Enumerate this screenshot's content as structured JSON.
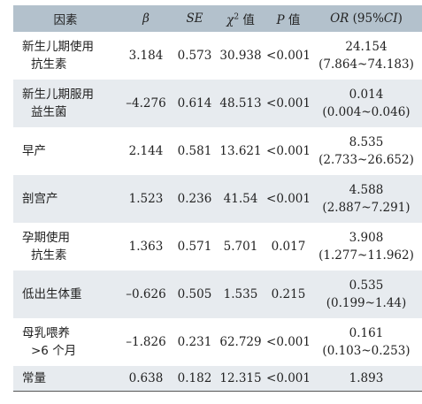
{
  "headers": {
    "factor": "因素",
    "beta": "β",
    "se": "SE",
    "chi": "χ",
    "chi_sup": "2",
    "chi_suffix": " 值",
    "p": "P",
    "p_suffix": " 值",
    "or": "OR",
    "or_suffix": " (95%",
    "ci": "CI",
    "ci_close": ")"
  },
  "rows": [
    {
      "factor_line1": "新生儿期使用",
      "factor_line2": "抗生素",
      "beta": "3.184",
      "se": "0.573",
      "chi2": "30.938",
      "p": "<0.001",
      "or": "24.154",
      "ci": "(7.864~74.183)"
    },
    {
      "factor_line1": "新生儿期服用",
      "factor_line2": "益生菌",
      "beta": "–4.276",
      "se": "0.614",
      "chi2": "48.513",
      "p": "<0.001",
      "or": "0.014",
      "ci": "(0.004~0.046)"
    },
    {
      "factor_line1": "早产",
      "factor_line2": "",
      "beta": "2.144",
      "se": "0.581",
      "chi2": "13.621",
      "p": "<0.001",
      "or": "8.535",
      "ci": "(2.733~26.652)"
    },
    {
      "factor_line1": "剖宫产",
      "factor_line2": "",
      "beta": "1.523",
      "se": "0.236",
      "chi2": "41.54",
      "p": "<0.001",
      "or": "4.588",
      "ci": "(2.887~7.291)"
    },
    {
      "factor_line1": "孕期使用",
      "factor_line2": "抗生素",
      "beta": "1.363",
      "se": "0.571",
      "chi2": "5.701",
      "p": "0.017",
      "or": "3.908",
      "ci": "(1.277~11.962)"
    },
    {
      "factor_line1": "低出生体重",
      "factor_line2": "",
      "beta": "–0.626",
      "se": "0.505",
      "chi2": "1.535",
      "p": "0.215",
      "or": "0.535",
      "ci": "(0.199~1.44)"
    },
    {
      "factor_line1": "母乳喂养",
      "factor_line2": ">6 个月",
      "beta": "–1.826",
      "se": "0.231",
      "chi2": "62.729",
      "p": "<0.001",
      "or": "0.161",
      "ci": "(0.103~0.253)"
    },
    {
      "factor_line1": "常量",
      "factor_line2": "",
      "beta": "0.638",
      "se": "0.182",
      "chi2": "12.315",
      "p": "<0.001",
      "or": "1.893",
      "ci": ""
    }
  ]
}
